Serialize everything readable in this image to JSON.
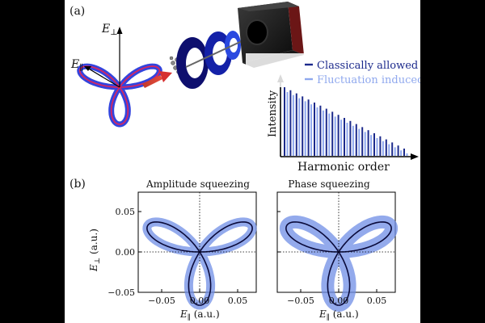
{
  "panel_a": {
    "label": "(a)",
    "e_perp": "E",
    "e_perp_sub": "⊥",
    "e_par": "E",
    "e_par_sub": "∥",
    "legend": {
      "classical": "Classically allowed",
      "fluct": "Fluctuation induced"
    },
    "ylabel": "Intensity",
    "xlabel": "Harmonic order",
    "colors": {
      "classical": "#1c2a8c",
      "fluct": "#8fa8ee"
    }
  },
  "panel_b": {
    "label": "(b)",
    "titles": [
      "Amplitude squeezing",
      "Phase squeezing"
    ],
    "ylabel_main": "E",
    "ylabel_sub": "⊥",
    "ylabel_unit": " (a.u.)",
    "xlabel_main": "E",
    "xlabel_sub": "∥",
    "xlabel_unit": " (a.u.)",
    "yticks": [
      "0.05",
      "0.00",
      "−0.05"
    ],
    "xticks": [
      "−0.05",
      "0.00",
      "0.05"
    ]
  },
  "chart_data": {
    "type": "line",
    "xlim": [
      -0.08,
      0.08
    ],
    "ylim": [
      -0.05,
      0.075
    ],
    "curve": "three-leaf rose (trefoil), leaves pointing up, lower-left, lower-right"
  }
}
